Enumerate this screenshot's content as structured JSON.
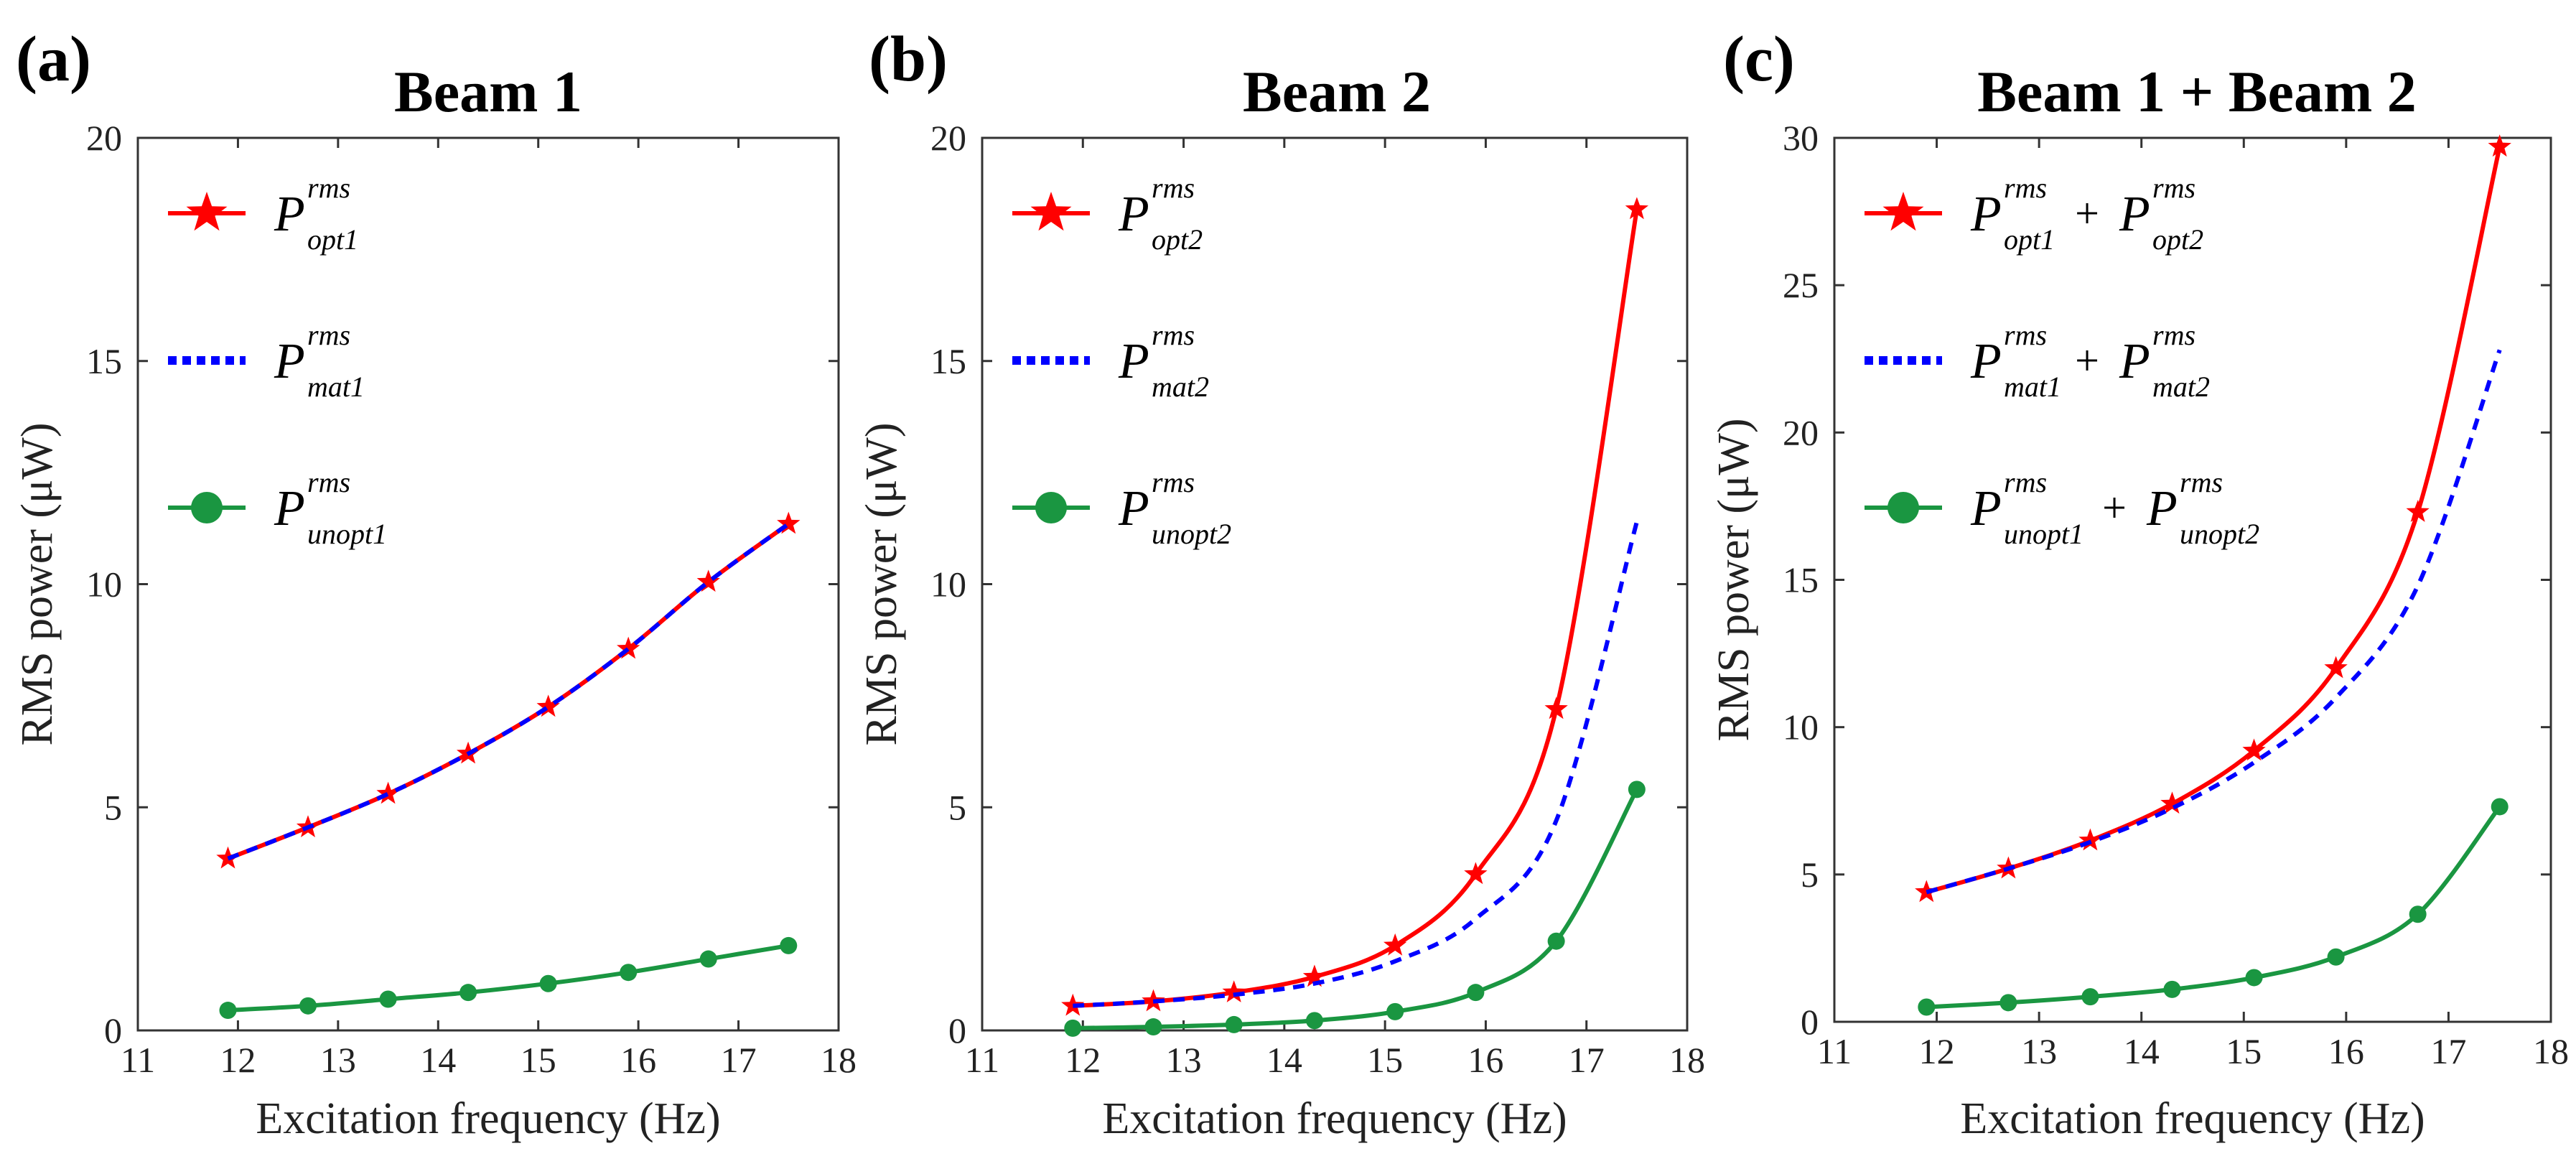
{
  "figure": {
    "colors": {
      "opt": "#ff0000",
      "mat": "#0000ff",
      "unopt": "#1a9641",
      "axis": "#333333"
    }
  },
  "chart_data": [
    {
      "type": "line",
      "panel_label": "(a)",
      "title": "Beam 1",
      "xlabel": "Excitation frequency  (Hz)",
      "ylabel": "RMS power  (μW)",
      "xlim": [
        11,
        18
      ],
      "ylim": [
        0,
        20
      ],
      "xticks": [
        "11",
        "12",
        "13",
        "14",
        "15",
        "16",
        "17",
        "18"
      ],
      "yticks": [
        "0",
        "5",
        "10",
        "15",
        "20"
      ],
      "x": [
        11.9,
        12.7,
        13.5,
        14.3,
        15.1,
        15.9,
        16.7,
        17.5
      ],
      "series": [
        {
          "key": "opt",
          "name": "P_opt1^rms",
          "legend": [
            {
              "p": "P",
              "sup": "rms",
              "sub": "opt1"
            }
          ],
          "values": [
            3.85,
            4.55,
            5.3,
            6.2,
            7.25,
            8.55,
            10.05,
            11.35
          ],
          "style": "solid",
          "marker": "star",
          "color": "#ff0000"
        },
        {
          "key": "mat",
          "name": "P_mat1^rms",
          "legend": [
            {
              "p": "P",
              "sup": "rms",
              "sub": "mat1"
            }
          ],
          "values": [
            3.85,
            4.55,
            5.3,
            6.2,
            7.25,
            8.55,
            10.05,
            11.35
          ],
          "style": "dashed",
          "marker": "none",
          "color": "#0000ff"
        },
        {
          "key": "unopt",
          "name": "P_unopt1^rms",
          "legend": [
            {
              "p": "P",
              "sup": "rms",
              "sub": "unopt1"
            }
          ],
          "values": [
            0.45,
            0.55,
            0.7,
            0.85,
            1.05,
            1.3,
            1.6,
            1.9
          ],
          "style": "solid",
          "marker": "circle",
          "color": "#1a9641"
        }
      ]
    },
    {
      "type": "line",
      "panel_label": "(b)",
      "title": "Beam 2",
      "xlabel": "Excitation frequency  (Hz)",
      "ylabel": "RMS power  (μW)",
      "xlim": [
        11,
        18
      ],
      "ylim": [
        0,
        20
      ],
      "xticks": [
        "11",
        "12",
        "13",
        "14",
        "15",
        "16",
        "17",
        "18"
      ],
      "yticks": [
        "0",
        "5",
        "10",
        "15",
        "20"
      ],
      "x": [
        11.9,
        12.7,
        13.5,
        14.3,
        15.1,
        15.9,
        16.7,
        17.5
      ],
      "series": [
        {
          "key": "opt",
          "name": "P_opt2^rms",
          "legend": [
            {
              "p": "P",
              "sup": "rms",
              "sub": "opt2"
            }
          ],
          "values": [
            0.55,
            0.65,
            0.85,
            1.2,
            1.9,
            3.5,
            7.2,
            18.4
          ],
          "style": "solid",
          "marker": "star",
          "color": "#ff0000"
        },
        {
          "key": "mat",
          "name": "P_mat2^rms",
          "legend": [
            {
              "p": "P",
              "sup": "rms",
              "sub": "mat2"
            }
          ],
          "values": [
            0.55,
            0.65,
            0.8,
            1.05,
            1.55,
            2.5,
            4.7,
            11.4
          ],
          "style": "dashed",
          "marker": "none",
          "color": "#0000ff"
        },
        {
          "key": "unopt",
          "name": "P_unopt2^rms",
          "legend": [
            {
              "p": "P",
              "sup": "rms",
              "sub": "unopt2"
            }
          ],
          "values": [
            0.05,
            0.08,
            0.13,
            0.22,
            0.42,
            0.85,
            2.0,
            5.4
          ],
          "style": "solid",
          "marker": "circle",
          "color": "#1a9641"
        }
      ]
    },
    {
      "type": "line",
      "panel_label": "(c)",
      "title": "Beam 1 + Beam 2",
      "xlabel": "Excitation frequency  (Hz)",
      "ylabel": "RMS power  (μW)",
      "xlim": [
        11,
        18
      ],
      "ylim": [
        0,
        30
      ],
      "xticks": [
        "11",
        "12",
        "13",
        "14",
        "15",
        "16",
        "17",
        "18"
      ],
      "yticks": [
        "0",
        "5",
        "10",
        "15",
        "20",
        "25",
        "30"
      ],
      "x": [
        11.9,
        12.7,
        13.5,
        14.3,
        15.1,
        15.9,
        16.7,
        17.5
      ],
      "series": [
        {
          "key": "opt",
          "name": "P_opt1^rms + P_opt2^rms",
          "legend": [
            {
              "p": "P",
              "sup": "rms",
              "sub": "opt1"
            },
            {
              "p": "P",
              "sup": "rms",
              "sub": "opt2"
            }
          ],
          "values": [
            4.4,
            5.2,
            6.15,
            7.4,
            9.2,
            12.0,
            17.3,
            29.7
          ],
          "style": "solid",
          "marker": "star",
          "color": "#ff0000"
        },
        {
          "key": "mat",
          "name": "P_mat1^rms + P_mat2^rms",
          "legend": [
            {
              "p": "P",
              "sup": "rms",
              "sub": "mat1"
            },
            {
              "p": "P",
              "sup": "rms",
              "sub": "mat2"
            }
          ],
          "values": [
            4.4,
            5.2,
            6.1,
            7.25,
            8.8,
            11.0,
            14.8,
            22.8
          ],
          "style": "dashed",
          "marker": "none",
          "color": "#0000ff"
        },
        {
          "key": "unopt",
          "name": "P_unopt1^rms + P_unopt2^rms",
          "legend": [
            {
              "p": "P",
              "sup": "rms",
              "sub": "unopt1"
            },
            {
              "p": "P",
              "sup": "rms",
              "sub": "unopt2"
            }
          ],
          "values": [
            0.5,
            0.65,
            0.85,
            1.1,
            1.5,
            2.2,
            3.65,
            7.3
          ],
          "style": "solid",
          "marker": "circle",
          "color": "#1a9641"
        }
      ]
    }
  ]
}
